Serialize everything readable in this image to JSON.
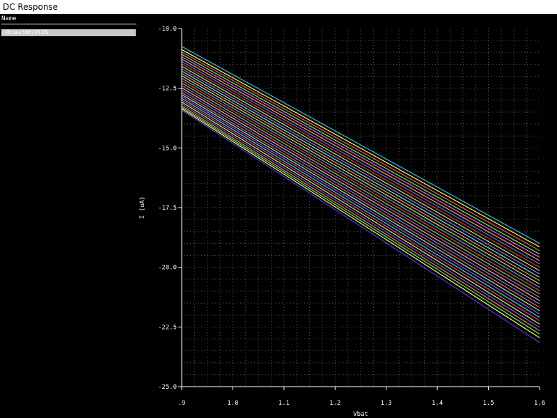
{
  "window": {
    "title": "DC Response"
  },
  "legend": {
    "header": "Name",
    "entry": "/Vbias306/PLUS"
  },
  "colors": {
    "background": "#000000",
    "grid": "#555555",
    "axis": "#ffffff",
    "legend_highlight": "#c8c8c8"
  },
  "chart_data": {
    "type": "line",
    "title": "",
    "xlabel": "Vbat",
    "ylabel": "I (uA)",
    "xlim": [
      0.9,
      1.6
    ],
    "ylim": [
      -25.0,
      -10.0
    ],
    "x_ticks": [
      0.9,
      1.0,
      1.1,
      1.2,
      1.3,
      1.4,
      1.5,
      1.6
    ],
    "x_tick_labels": [
      ".9",
      "1.0",
      "1.1",
      "1.2",
      "1.3",
      "1.4",
      "1.5",
      "1.6"
    ],
    "y_ticks": [
      -10.0,
      -12.5,
      -15.0,
      -17.5,
      -20.0,
      -22.5,
      -25.0
    ],
    "y_tick_labels": [
      "-10.0",
      "-12.5",
      "-15.0",
      "-17.5",
      "-20.0",
      "-22.5",
      "-25.0"
    ],
    "grid": true,
    "x": [
      0.9,
      1.6
    ],
    "series": [
      {
        "color": "#33bbee",
        "values": [
          -10.75,
          -19.0
        ]
      },
      {
        "color": "#ffff55",
        "values": [
          -10.88,
          -19.15
        ]
      },
      {
        "color": "#ff5555",
        "values": [
          -10.98,
          -19.3
        ]
      },
      {
        "color": "#55ff55",
        "values": [
          -11.08,
          -19.45
        ]
      },
      {
        "color": "#ff55ff",
        "values": [
          -11.18,
          -19.58
        ]
      },
      {
        "color": "#ffaa33",
        "values": [
          -11.28,
          -19.72
        ]
      },
      {
        "color": "#5577ff",
        "values": [
          -11.38,
          -19.86
        ]
      },
      {
        "color": "#ee3333",
        "values": [
          -11.48,
          -20.0
        ]
      },
      {
        "color": "#aaff55",
        "values": [
          -11.58,
          -20.14
        ]
      },
      {
        "color": "#bb66ff",
        "values": [
          -11.68,
          -20.28
        ]
      },
      {
        "color": "#55ffcc",
        "values": [
          -11.78,
          -20.42
        ]
      },
      {
        "color": "#ff8899",
        "values": [
          -11.88,
          -20.56
        ]
      },
      {
        "color": "#dddd33",
        "values": [
          -11.98,
          -20.7
        ]
      },
      {
        "color": "#44aaff",
        "values": [
          -12.08,
          -20.84
        ]
      },
      {
        "color": "#ff4422",
        "values": [
          -12.18,
          -20.98
        ]
      },
      {
        "color": "#66dd66",
        "values": [
          -12.28,
          -21.12
        ]
      },
      {
        "color": "#cc55cc",
        "values": [
          -12.38,
          -21.26
        ]
      },
      {
        "color": "#ffbb66",
        "values": [
          -12.48,
          -21.4
        ]
      },
      {
        "color": "#6688ff",
        "values": [
          -12.58,
          -21.54
        ]
      },
      {
        "color": "#ff5577",
        "values": [
          -12.68,
          -21.68
        ]
      },
      {
        "color": "#88ff88",
        "values": [
          -12.76,
          -21.82
        ]
      },
      {
        "color": "#aa44ff",
        "values": [
          -12.84,
          -21.96
        ]
      },
      {
        "color": "#33ddcc",
        "values": [
          -12.92,
          -22.1
        ]
      },
      {
        "color": "#ff3399",
        "values": [
          -13.0,
          -22.24
        ]
      },
      {
        "color": "#ccff44",
        "values": [
          -13.08,
          -22.38
        ]
      },
      {
        "color": "#7755ff",
        "values": [
          -13.16,
          -22.52
        ]
      },
      {
        "color": "#ff7744",
        "values": [
          -13.24,
          -22.66
        ]
      },
      {
        "color": "#44ff77",
        "values": [
          -13.3,
          -22.8
        ]
      },
      {
        "color": "#ffff33",
        "values": [
          -13.36,
          -22.95
        ]
      },
      {
        "color": "#5533ff",
        "values": [
          -13.42,
          -23.15
        ]
      }
    ]
  }
}
